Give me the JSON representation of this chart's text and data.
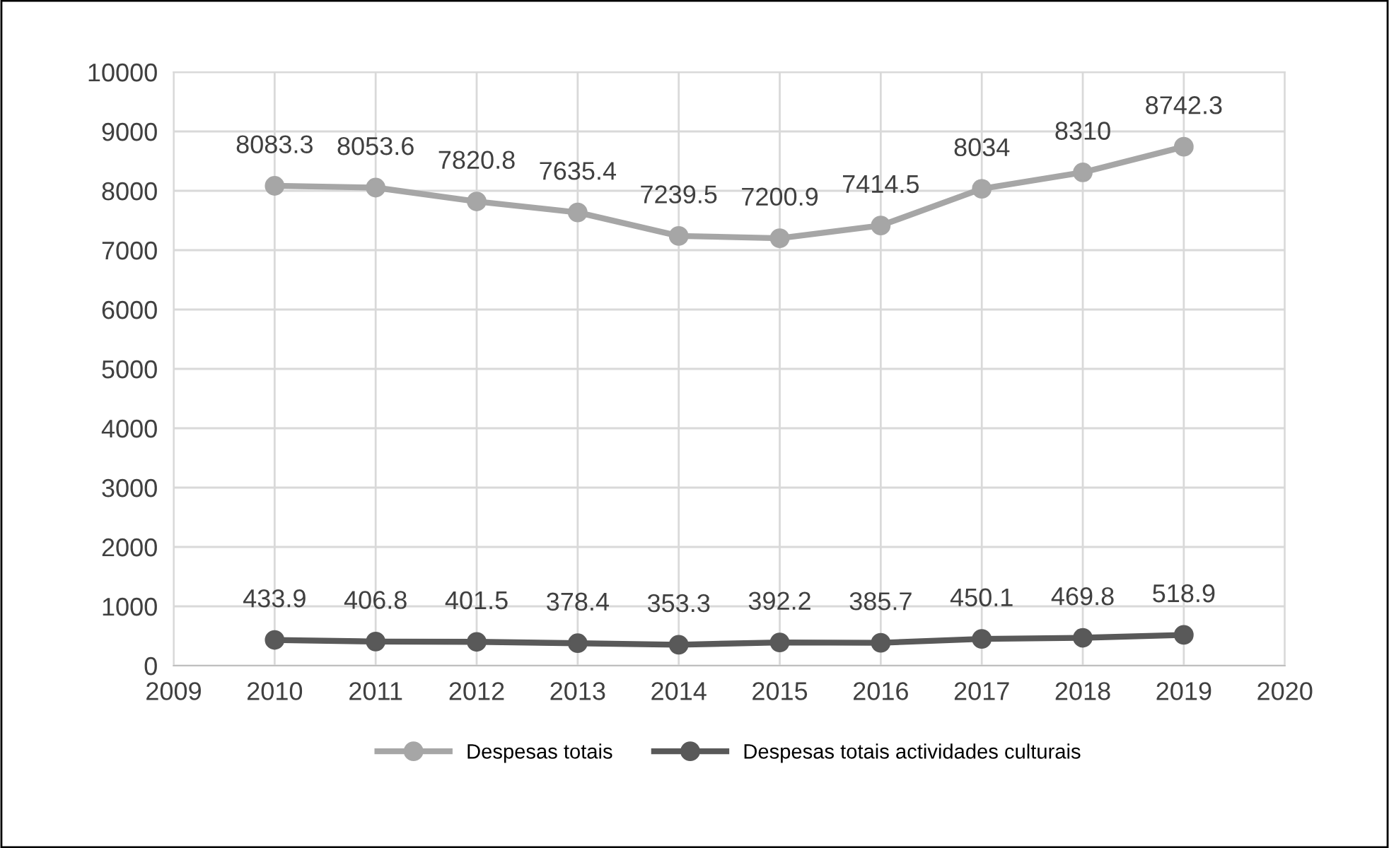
{
  "chart_data": {
    "type": "line",
    "x": [
      2010,
      2011,
      2012,
      2013,
      2014,
      2015,
      2016,
      2017,
      2018,
      2019
    ],
    "series": [
      {
        "name": "Despesas totais",
        "color": "#a6a6a6",
        "values": [
          8083.3,
          8053.6,
          7820.8,
          7635.4,
          7239.5,
          7200.9,
          7414.5,
          8034,
          8310,
          8742.3
        ]
      },
      {
        "name": "Despesas totais actividades culturais",
        "color": "#595959",
        "values": [
          433.9,
          406.8,
          401.5,
          378.4,
          353.3,
          392.2,
          385.7,
          450.1,
          469.8,
          518.9
        ]
      }
    ],
    "xlim": [
      2009,
      2020
    ],
    "xticks": [
      2009,
      2010,
      2011,
      2012,
      2013,
      2014,
      2015,
      2016,
      2017,
      2018,
      2019,
      2020
    ],
    "ylim": [
      0,
      10000
    ],
    "yticks": [
      0,
      1000,
      2000,
      3000,
      4000,
      5000,
      6000,
      7000,
      8000,
      9000,
      10000
    ],
    "grid": true,
    "legend": "bottom",
    "marker": "circle",
    "line_style": "solid",
    "data_labels": true
  }
}
